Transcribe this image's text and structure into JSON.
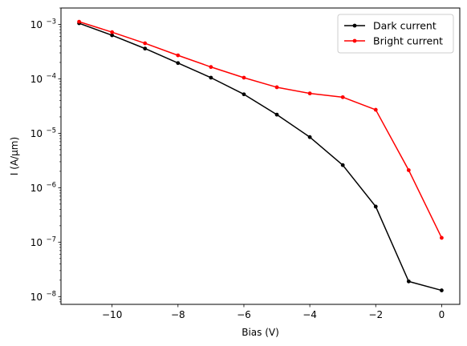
{
  "chart_data": {
    "type": "line",
    "xlabel": "Bias (V)",
    "ylabel": "I (A/μm)",
    "x": [
      -11,
      -10,
      -9,
      -8,
      -7,
      -6,
      -5,
      -4,
      -3,
      -2,
      -1,
      0
    ],
    "xlim": [
      -11.55,
      0.55
    ],
    "ylim": [
      7.2e-09,
      0.002
    ],
    "yscale": "log",
    "grid": false,
    "legend_position": "top-right",
    "x_ticks": [
      {
        "value": -10,
        "label": "−10"
      },
      {
        "value": -8,
        "label": "−8"
      },
      {
        "value": -6,
        "label": "−6"
      },
      {
        "value": -4,
        "label": "−4"
      },
      {
        "value": -2,
        "label": "−2"
      },
      {
        "value": 0,
        "label": "0"
      }
    ],
    "y_ticks": [
      {
        "exp": -8,
        "base": "10",
        "exp_label": "−8"
      },
      {
        "exp": -7,
        "base": "10",
        "exp_label": "−7"
      },
      {
        "exp": -6,
        "base": "10",
        "exp_label": "−6"
      },
      {
        "exp": -5,
        "base": "10",
        "exp_label": "−5"
      },
      {
        "exp": -4,
        "base": "10",
        "exp_label": "−4"
      },
      {
        "exp": -3,
        "base": "10",
        "exp_label": "−3"
      }
    ],
    "series": [
      {
        "name": "Dark current",
        "color": "#000000",
        "values": [
          0.00105,
          0.00063,
          0.00036,
          0.000195,
          0.000105,
          5.2e-05,
          2.2e-05,
          8.5e-06,
          2.6e-06,
          4.5e-07,
          1.9e-08,
          1.3e-08
        ]
      },
      {
        "name": "Bright current",
        "color": "#ff0000",
        "values": [
          0.00112,
          0.00072,
          0.00045,
          0.00027,
          0.000165,
          0.000105,
          7e-05,
          5.4e-05,
          4.6e-05,
          2.7e-05,
          2.1e-06,
          1.2e-07
        ]
      }
    ]
  }
}
